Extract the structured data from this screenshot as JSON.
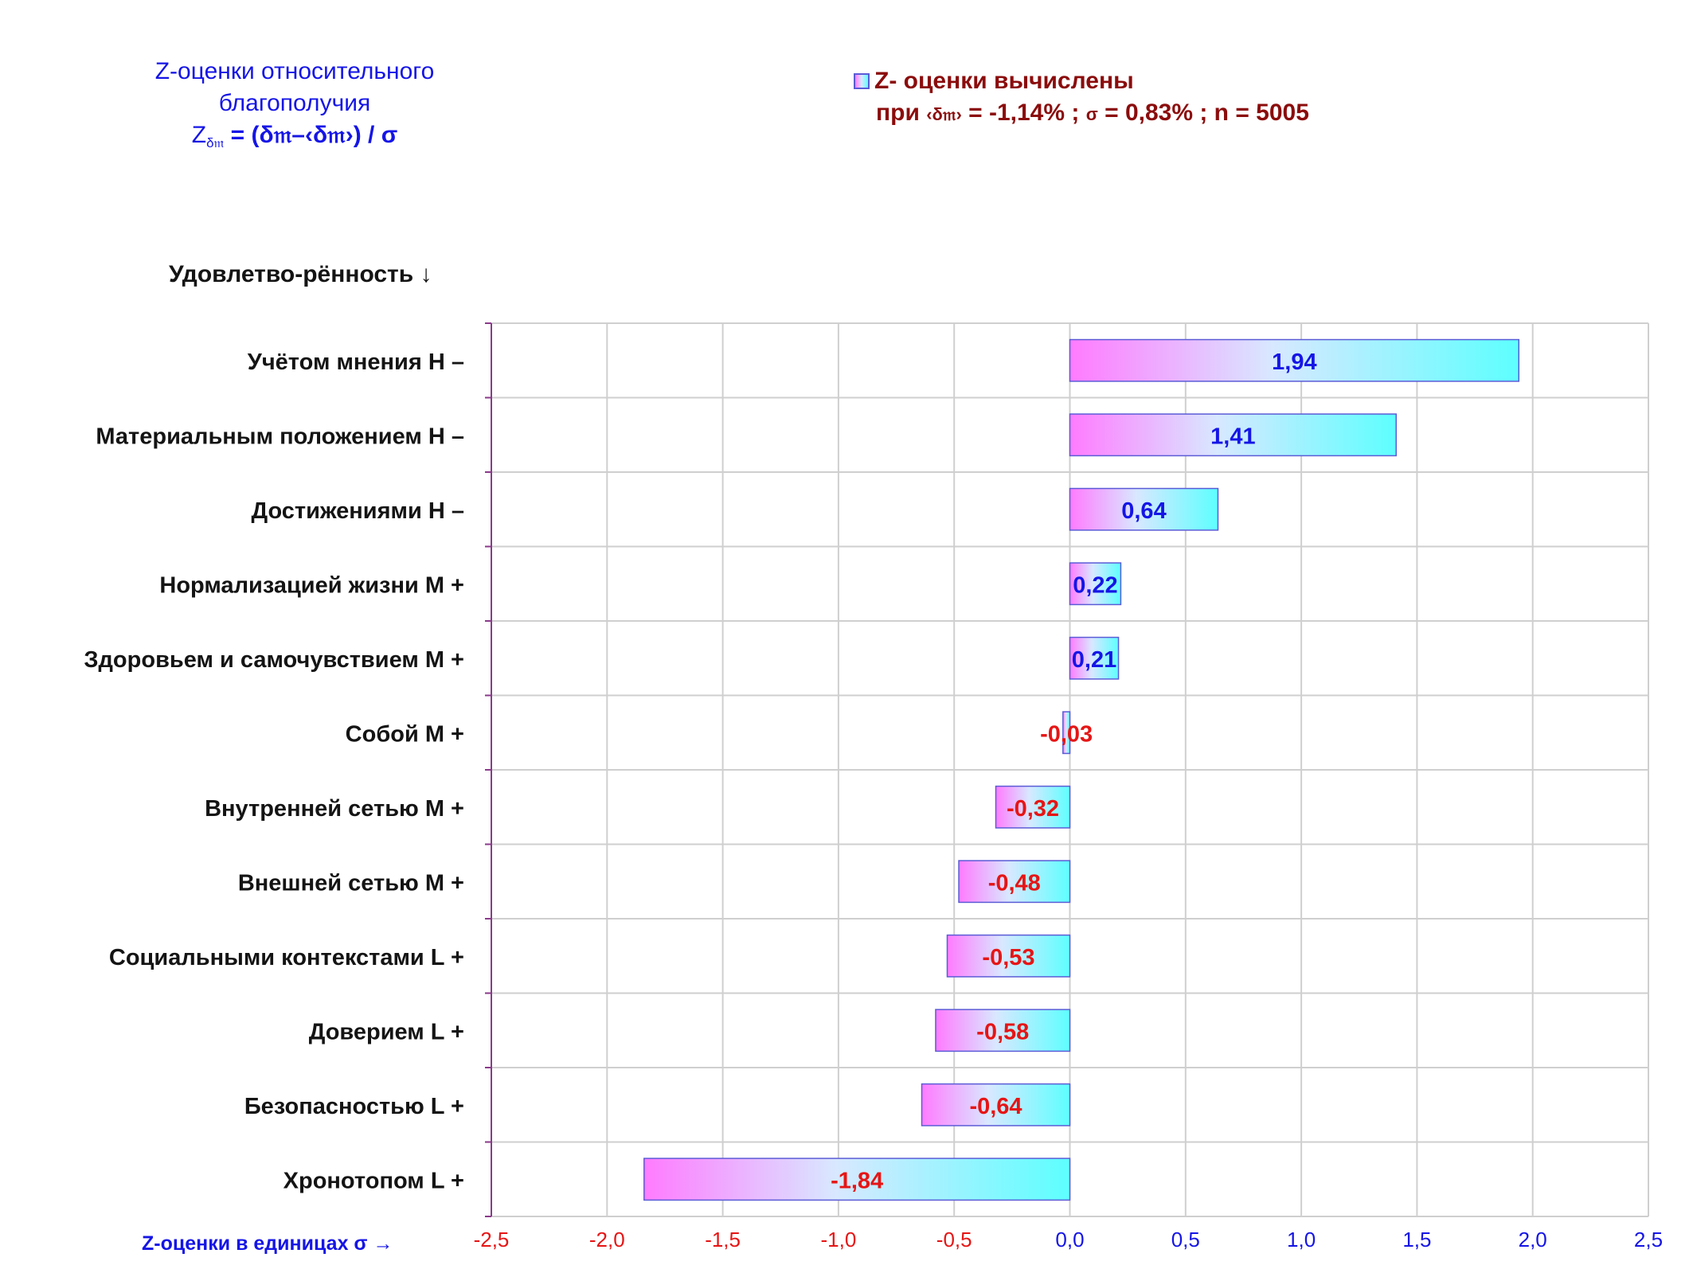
{
  "header": {
    "title_line1": "Z-оценки  относительного",
    "title_line2": "благополучия",
    "title_formula_z": "Z",
    "title_formula_sub": "δ𝔪",
    "title_formula_rest": " = (δ𝔪–‹δ𝔪›)  / σ"
  },
  "legend": {
    "series_label": "Z- оценки вычислены",
    "params_prefix": "при ",
    "params_mean_symbol": "‹δ𝔪›",
    "params_mean": " = -1,14% ; ",
    "params_sigma_symbol": "σ",
    "params_rest": " = 0,83% ; n = 5005"
  },
  "colors": {
    "positive_label": "#1515e6",
    "negative_label": "#e61515",
    "bar_gradient_left": "#ff7bff",
    "bar_gradient_mid": "#d8e8ff",
    "bar_gradient_right": "#5dffff",
    "bar_border": "#5b5bd6",
    "axis": "#8a3a8a",
    "grid": "#cfcfcf"
  },
  "chart_data": {
    "type": "bar",
    "orientation": "horizontal",
    "category_axis_title": "Удовлетво-рённость ↓",
    "x_axis_title": "Z-оценки в единицах σ →",
    "categories": [
      "Учётом мнения  H –",
      "Материальным положением  H –",
      "Достижениями  H –",
      "Нормализацией жизни  M +",
      "Здоровьем и самочувствием  M +",
      "Собой  M +",
      "Внутренней сетью  M +",
      "Внешней сетью  M +",
      "Социальными контекстами  L +",
      "Доверием  L +",
      "Безопасностью  L +",
      "Хронотопом  L +"
    ],
    "values": [
      1.94,
      1.41,
      0.64,
      0.22,
      0.21,
      -0.03,
      -0.32,
      -0.48,
      -0.53,
      -0.58,
      -0.64,
      -1.84
    ],
    "value_labels": [
      "1,94",
      "1,41",
      "0,64",
      "0,22",
      "0,21",
      "-0,03",
      "-0,32",
      "-0,48",
      "-0,53",
      "-0,58",
      "-0,64",
      "-1,84"
    ],
    "xlim": [
      -2.5,
      2.5
    ],
    "x_ticks": [
      -2.5,
      -2.0,
      -1.5,
      -1.0,
      -0.5,
      0.0,
      0.5,
      1.0,
      1.5,
      2.0,
      2.5
    ],
    "x_tick_labels": [
      "-2,5",
      "-2,0",
      "-1,5",
      "-1,0",
      "-0,5",
      "0,0",
      "0,5",
      "1,0",
      "1,5",
      "2,0",
      "2,5"
    ],
    "grid": true,
    "legend_position": "top-right"
  }
}
